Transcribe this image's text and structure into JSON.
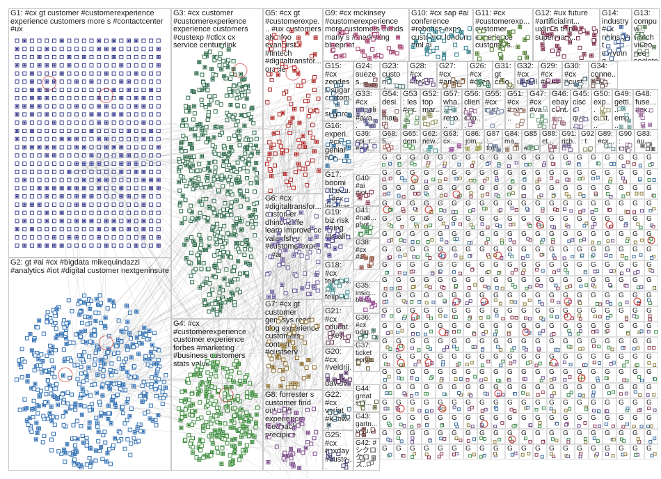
{
  "graph": {
    "groups": [
      {
        "id": "G1",
        "label": "G1: #cx gt customer #customerexperience experience customers more s #contactcenter #ux",
        "node_color": "#3a3f8f"
      },
      {
        "id": "G2",
        "label": "G2: gt #ai #cx #bigdata mikequindazzi #analytics #iot #digital customer nextgeninsure",
        "node_color": "#2f6fb3"
      },
      {
        "id": "G3",
        "label": "G3: #cx customer #customerexperience experience customers #custexp #ctlcx cx service centurylink",
        "node_color": "#2e6b4a"
      },
      {
        "id": "G4",
        "label": "G4: #cx #customerexperience customer experience forbes #marketing #business customers stats value",
        "node_color": "#3a8a3a"
      },
      {
        "id": "G5",
        "label": "G5: #cx gt #customerexpe... #ux customers alvinfoo evankirstel #fintech #digitaltransfor... oracle",
        "node_color": "#b02a2a"
      },
      {
        "id": "G6",
        "label": "G6: #cx #digitaltransfor... customer dhinchcliffe learn improve cc valaafshar #customerexpe... #ai",
        "node_color": "#6b5a9a"
      },
      {
        "id": "G7",
        "label": "G7: #cx gt customer genesys read blog experience customers contact #custserv",
        "node_color": "#8a6b2a"
      },
      {
        "id": "G8",
        "label": "G8: forrester s customer find out shift experience feedback precipice",
        "node_color": "#7a4a8a"
      },
      {
        "id": "G9",
        "label": "G9: #cx mckinsey #customerexperience more customers trends many s #marketing blueprint",
        "node_color": "#a03a6a"
      },
      {
        "id": "G10",
        "label": "G10: #cx sap #ai conference #robotics expo customer london #ml ai",
        "node_color": "#2a7a8a"
      },
      {
        "id": "G11",
        "label": "G11: #cx #customerexp... customer experience customers...",
        "node_color": "#4a7a2a"
      },
      {
        "id": "G12",
        "label": "G12: #ux future #artificialint... uxlinks think supermark...",
        "node_color": "#7a2a4a"
      },
      {
        "id": "G14",
        "label": "G14: industry #cx nhinsight evrythng...",
        "node_color": "#3a5a9a"
      },
      {
        "id": "G13",
        "label": "G13: compuw... watch video see societe...",
        "node_color": "#5a7a5a"
      },
      {
        "id": "G15",
        "label": "G15: #cx zendesk sugar custom... sugarc...",
        "node_color": "#2a5a7a"
      },
      {
        "id": "G24",
        "label": "G24: suezes...",
        "node_color": "#6a3a3a"
      },
      {
        "id": "G23",
        "label": "G23: custom... 4...",
        "node_color": "#3a6a6a"
      },
      {
        "id": "G28",
        "label": "G28: #cx #itc20... top...",
        "node_color": "#5a3a7a"
      },
      {
        "id": "G27",
        "label": "G27: #cx #amai...",
        "node_color": "#7a5a3a"
      },
      {
        "id": "G26",
        "label": "G26: #cx #ccaas...",
        "node_color": "#3a7a5a"
      },
      {
        "id": "G31",
        "label": "G31: gt cmo next...",
        "node_color": "#6a6a3a"
      },
      {
        "id": "G32",
        "label": "G32: #cx usabil...",
        "node_color": "#3a3a7a"
      },
      {
        "id": "G29",
        "label": "G29: #cx #custo...",
        "node_color": "#7a3a6a"
      },
      {
        "id": "G30",
        "label": "G30: #cx #cust...",
        "node_color": "#4a6a7a"
      },
      {
        "id": "G34",
        "label": "G34: conne... cio...",
        "node_color": "#6a4a4a"
      },
      {
        "id": "G16",
        "label": "G16: experi... #cx genial hilo...",
        "node_color": "#2a6a9a"
      },
      {
        "id": "G33",
        "label": "G33: #cx napoli #ava...",
        "node_color": "#5a5a8a"
      },
      {
        "id": "G54",
        "label": "G54: desi... man...",
        "node_color": "#8a5a5a"
      },
      {
        "id": "G53",
        "label": "G53: les #cx...",
        "node_color": "#5a8a5a"
      },
      {
        "id": "G52",
        "label": "G52: top mar...",
        "node_color": "#8a8a5a"
      },
      {
        "id": "G57",
        "label": "G57: wha... revo...",
        "node_color": "#5a8a8a"
      },
      {
        "id": "G56",
        "label": "G56: client exp...",
        "node_color": "#8a5a8a"
      },
      {
        "id": "G55",
        "label": "G55: #cx cust...",
        "node_color": "#6a7a9a"
      },
      {
        "id": "G51",
        "label": "G51: #cx #cyc...",
        "node_color": "#9a7a6a"
      },
      {
        "id": "G47",
        "label": "G47: #cx #va...",
        "node_color": "#6a9a7a"
      },
      {
        "id": "G46",
        "label": "G46: ebay cont...",
        "node_color": "#9a6a7a"
      },
      {
        "id": "G45",
        "label": "G45: cisco que...",
        "node_color": "#7a6a9a"
      },
      {
        "id": "G50",
        "label": "G50: exp... cust...",
        "node_color": "#9a9a6a"
      },
      {
        "id": "G49",
        "label": "G49: getti... emp...",
        "node_color": "#6a9a9a"
      },
      {
        "id": "G48",
        "label": "G48: fuse... #cx...",
        "node_color": "#9a6a9a"
      },
      {
        "id": "G39",
        "label": "G39: cpi_r... #aut...",
        "node_color": "#4a4a9a"
      },
      {
        "id": "G68",
        "label": "G68: 5...",
        "node_color": "#9a4a4a"
      },
      {
        "id": "G65",
        "label": "G65: dem...",
        "node_color": "#4a9a4a"
      },
      {
        "id": "G62",
        "label": "G62: new...",
        "node_color": "#4a9a9a"
      },
      {
        "id": "G63",
        "label": "G63: cx...",
        "node_color": "#9a4a9a"
      },
      {
        "id": "G86",
        "label": "G86: join...",
        "node_color": "#9a9a4a"
      },
      {
        "id": "G87",
        "label": "G87: top...",
        "node_color": "#5a6a8a"
      },
      {
        "id": "G84",
        "label": "G84: ma...",
        "node_color": "#8a6a5a"
      },
      {
        "id": "G85",
        "label": "G85: #cx...",
        "node_color": "#5a8a6a"
      },
      {
        "id": "G88",
        "label": "G88: et...",
        "node_color": "#8a5a6a"
      },
      {
        "id": "G91",
        "label": "G91: rich...",
        "node_color": "#6a5a8a"
      },
      {
        "id": "G92",
        "label": "G92: t",
        "node_color": "#8a8a6a"
      },
      {
        "id": "G89",
        "label": "G89: #cx...",
        "node_color": "#6a8a8a"
      },
      {
        "id": "G90",
        "label": "G90: rep...",
        "node_color": "#8a6a8a"
      },
      {
        "id": "G83",
        "label": "G83: au...",
        "node_color": "#5a5a5a"
      },
      {
        "id": "G17",
        "label": "G17: boomi #theou... #cx lisamar...",
        "node_color": "#3a4a8a"
      },
      {
        "id": "G40",
        "label": "G40: #ai #iot...",
        "node_color": "#8a3a4a"
      },
      {
        "id": "G41",
        "label": "G41: #nati... phot...",
        "node_color": "#3a8a4a"
      },
      {
        "id": "G19",
        "label": "G19: biz risk doing #totalit...",
        "node_color": "#4a3a8a"
      },
      {
        "id": "G38",
        "label": "G38: #cx #ai...",
        "node_color": "#8a4a3a"
      },
      {
        "id": "G18",
        "label": "G18: #cx teikauc... felipeo...",
        "node_color": "#3a8a8a"
      },
      {
        "id": "G35",
        "label": "G35: insig... busi...",
        "node_color": "#8a3a8a"
      },
      {
        "id": "G21",
        "label": "G21: #cx educat... key...",
        "node_color": "#6a3a5a"
      },
      {
        "id": "G36",
        "label": "G36: #cx odig...",
        "node_color": "#3a6a5a"
      },
      {
        "id": "G20",
        "label": "G20: #cx #veldrij... davidv...",
        "node_color": "#5a3a6a"
      },
      {
        "id": "G37",
        "label": "G37: ticket conf...",
        "node_color": "#6a5a3a"
      },
      {
        "id": "G22",
        "label": "G22: #cx verint #knowl...",
        "node_color": "#3a5a6a"
      },
      {
        "id": "G44",
        "label": "G44: great still...",
        "node_color": "#5a6a3a"
      },
      {
        "id": "G43",
        "label": "G43: gartn... valu...",
        "node_color": "#6a3a3a"
      },
      {
        "id": "G25",
        "label": "G25: #cx #cxday #custo...",
        "node_color": "#3a3a6a"
      },
      {
        "id": "G42",
        "label": "G42: #シクロ クロス...",
        "node_color": "#6a6a6a"
      }
    ],
    "small_group_prefix": "G",
    "edge_color": "#9a9a9a",
    "highlight_color": "#d03030"
  }
}
